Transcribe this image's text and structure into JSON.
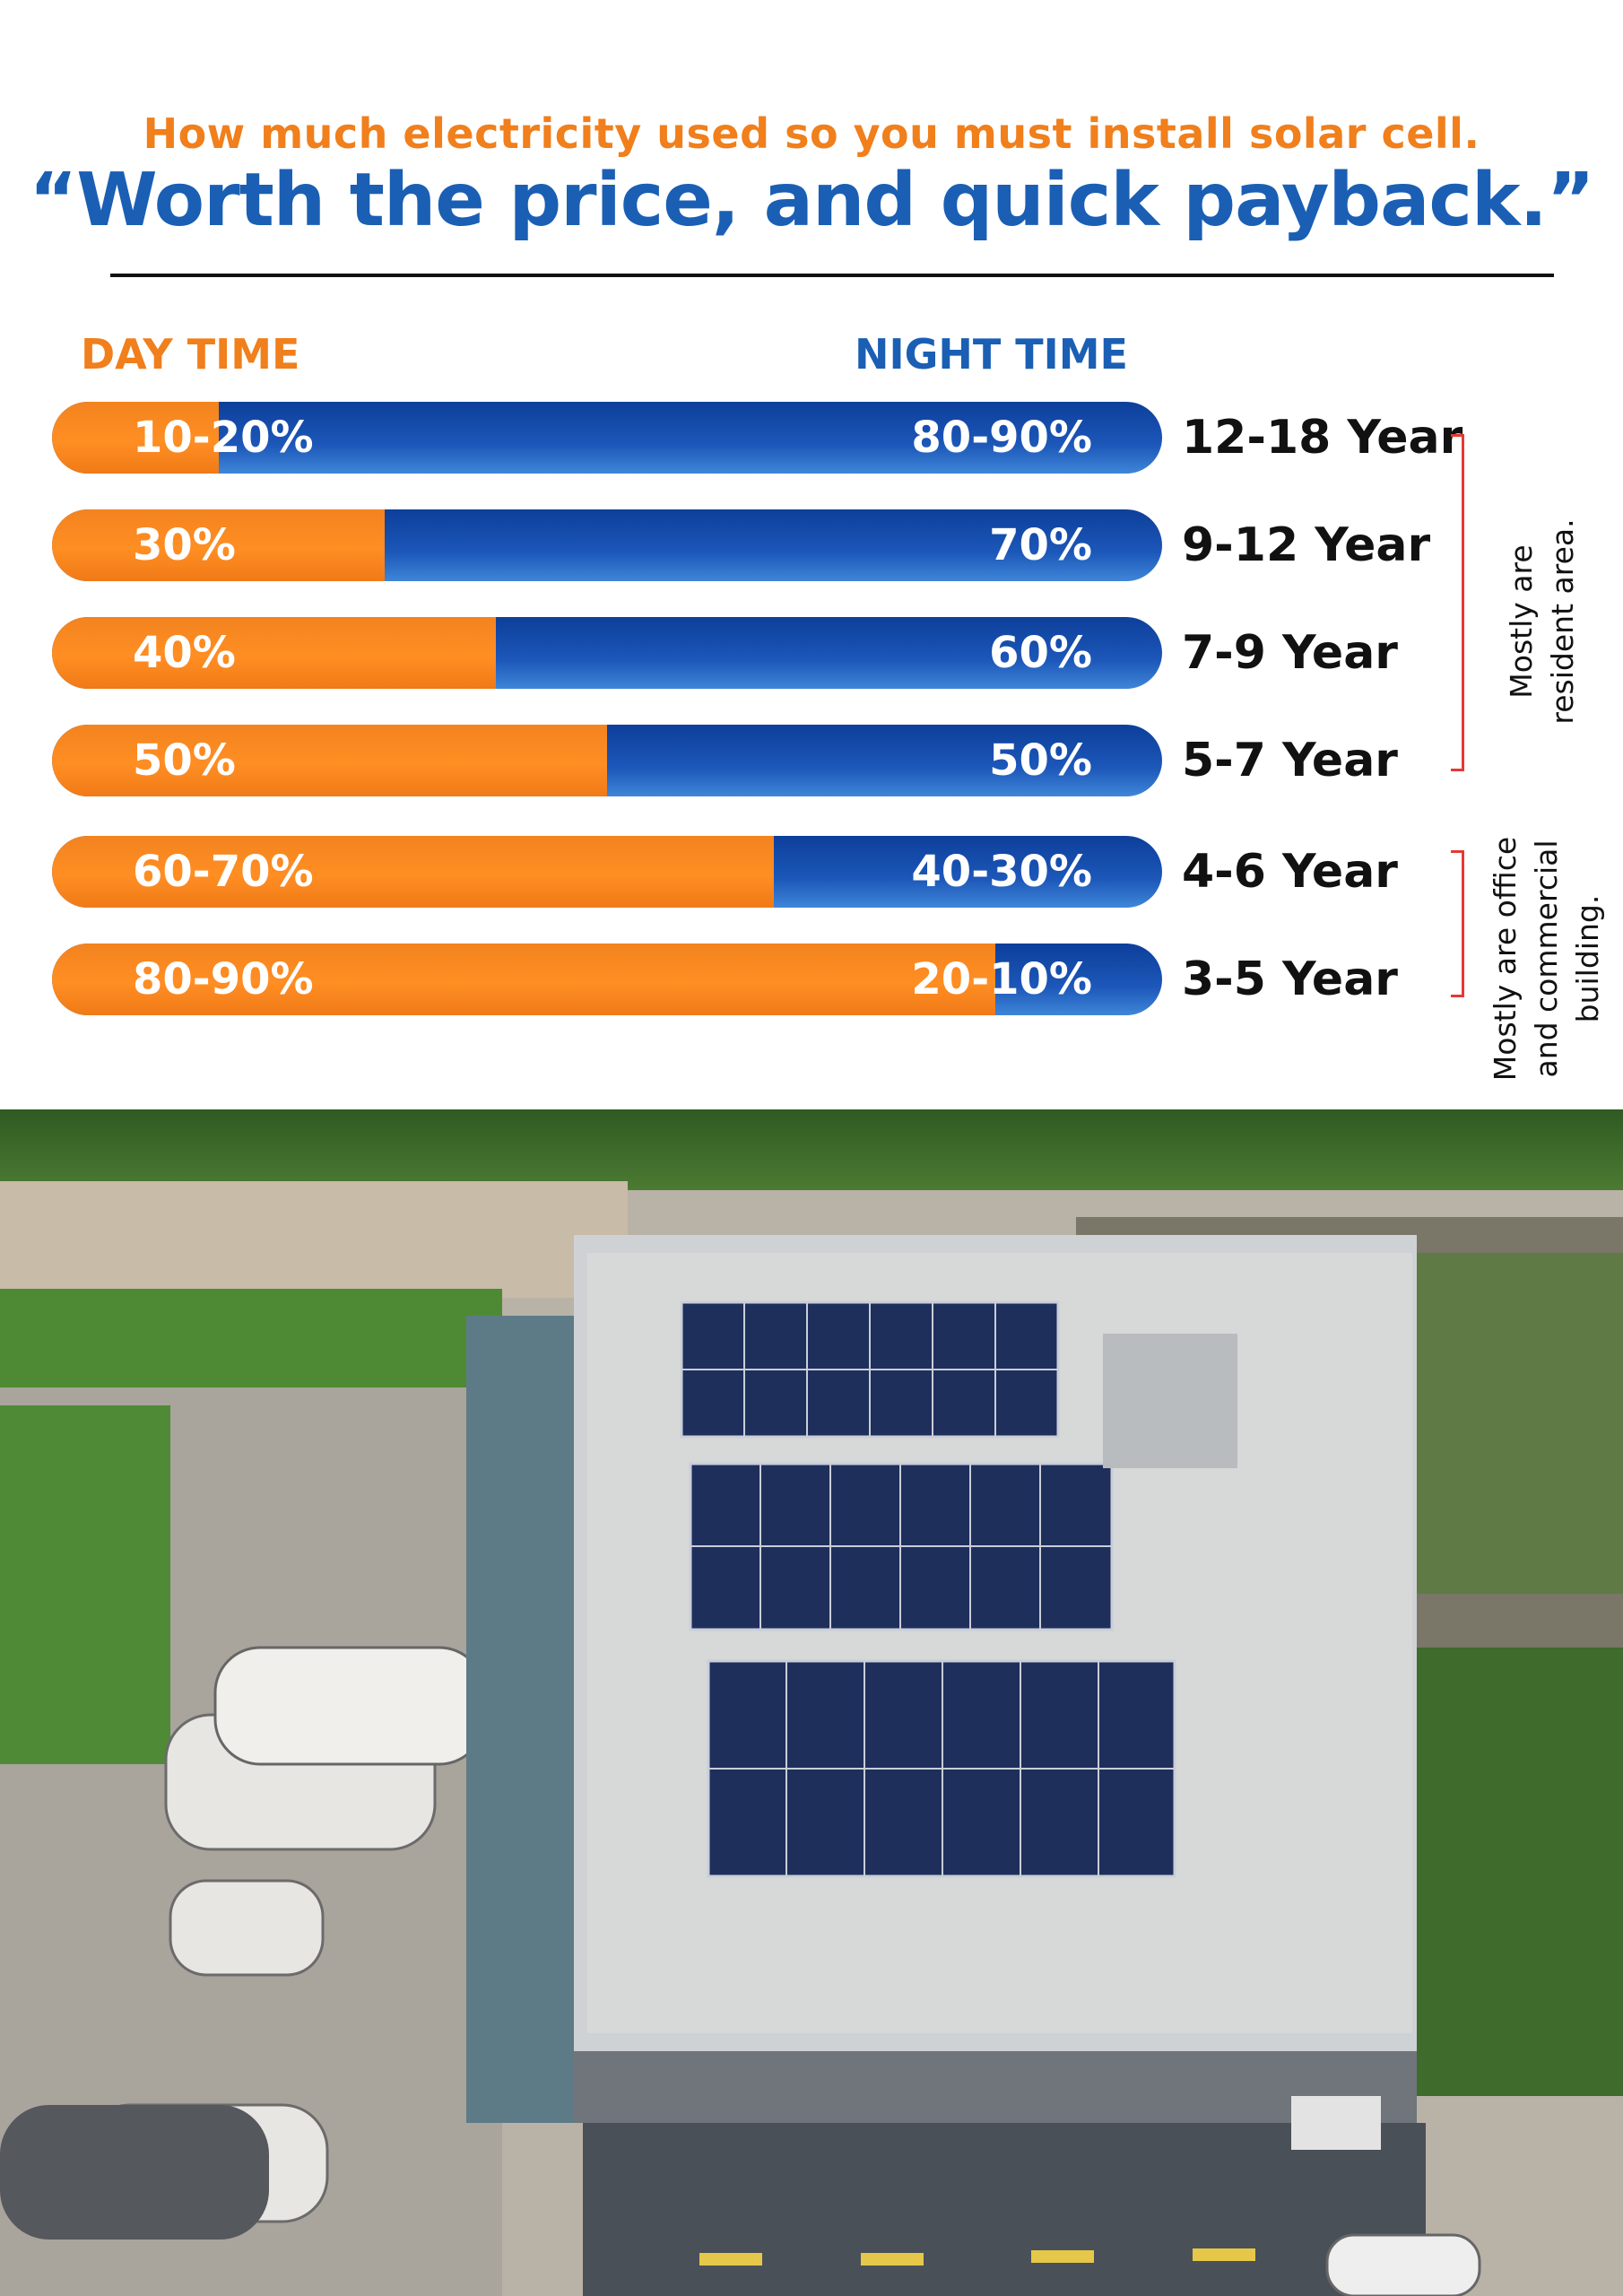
{
  "header": {
    "subtitle": "How much electricity used so you must install solar cell.",
    "title": "“Worth the price, and quick payback.”"
  },
  "columns": {
    "day": "DAY TIME",
    "night": "NIGHT TIME"
  },
  "colors": {
    "day": "#f07f1c",
    "night": "#1a5fb4",
    "bracket": "#e53935"
  },
  "chart_data": {
    "type": "bar",
    "stacked": true,
    "orientation": "horizontal",
    "title": "",
    "xlabel": "",
    "ylabel": "",
    "categories": [
      "12-18 Year",
      "9-12 Year",
      "7-9 Year",
      "5-7 Year",
      "4-6 Year",
      "3-5 Year"
    ],
    "series": [
      {
        "name": "DAY TIME",
        "values": [
          15,
          30,
          40,
          50,
          65,
          85
        ],
        "labels": [
          "10-20%",
          "30%",
          "40%",
          "50%",
          "60-70%",
          "80-90%"
        ]
      },
      {
        "name": "NIGHT TIME",
        "values": [
          85,
          70,
          60,
          50,
          35,
          15
        ],
        "labels": [
          "80-90%",
          "70%",
          "60%",
          "50%",
          "40-30%",
          "20-10%"
        ]
      }
    ],
    "xlim": [
      0,
      100
    ]
  },
  "groups": [
    {
      "label_line1": "Mostly are",
      "label_line2": "resident area."
    },
    {
      "label_line1": "Mostly are office",
      "label_line2": "and commercial",
      "label_line3": "building."
    }
  ],
  "photo": {
    "description_icon": "rooftop-solar-building-photo"
  }
}
